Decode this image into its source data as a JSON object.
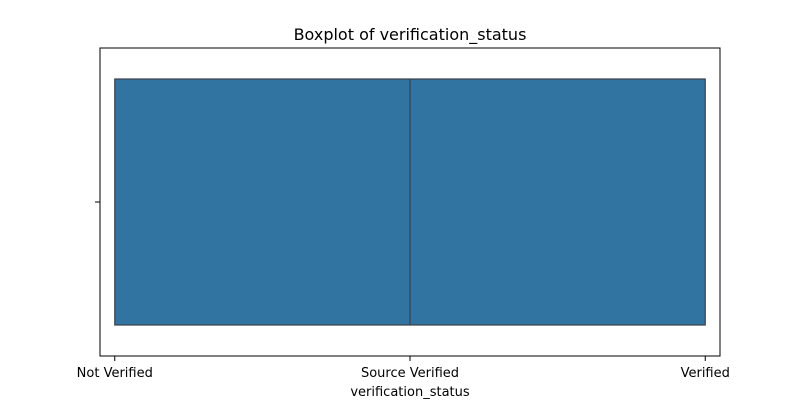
{
  "chart_data": {
    "type": "box",
    "title": "Boxplot of verification_status",
    "xlabel": "verification_status",
    "ylabel": "",
    "orientation": "horizontal",
    "categories": [
      "Not Verified",
      "Source Verified",
      "Verified"
    ],
    "xlim": [
      -0.05,
      2.05
    ],
    "grid": false,
    "legend": "none",
    "box": {
      "whisker_low": 0,
      "q1": 0,
      "median": 1,
      "q3": 2,
      "whisker_high": 2
    },
    "colors": {
      "box_fill": "#3274a1",
      "box_edge": "#3b3f4a",
      "axis": "#000000"
    }
  }
}
